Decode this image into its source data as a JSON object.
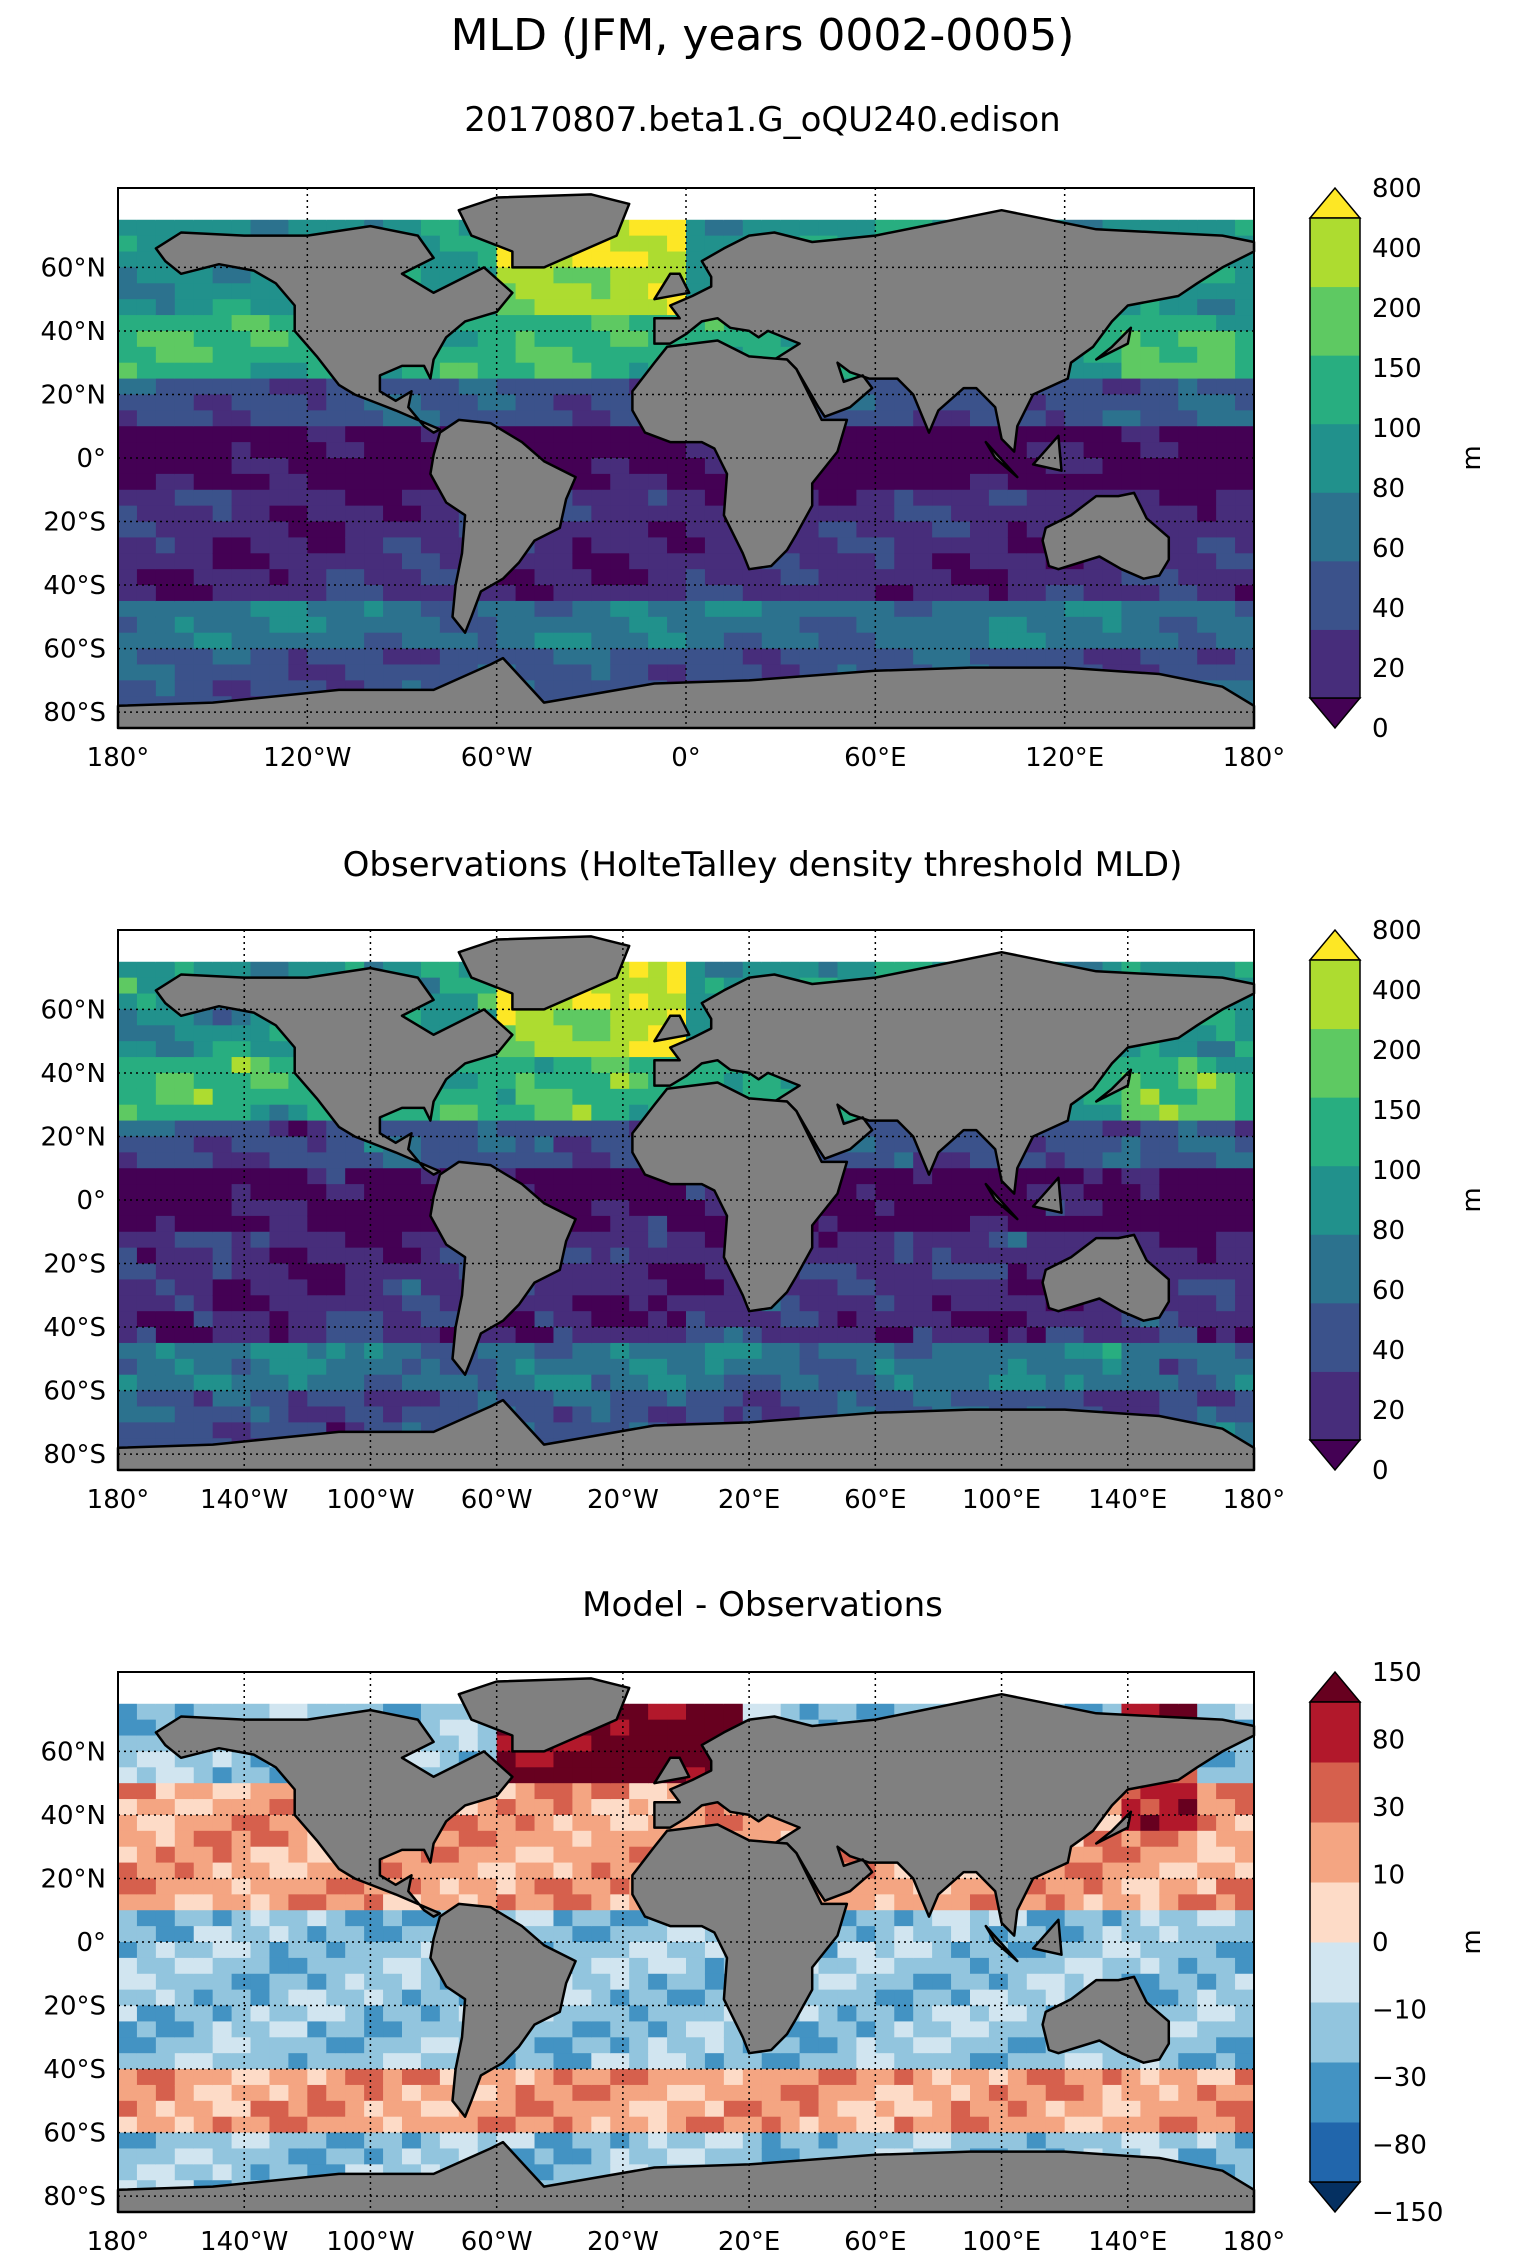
{
  "figure": {
    "title": "MLD (JFM, years 0002-0005)",
    "subtitle": "20170807.beta1.G_oQU240.edison"
  },
  "colors": {
    "land": "#808080",
    "viridis": [
      "#440154",
      "#472d7b",
      "#3b528b",
      "#2c728e",
      "#21918c",
      "#28ae80",
      "#5ec962",
      "#addc30",
      "#fde725"
    ],
    "rdbu": [
      "#053061",
      "#2166ac",
      "#4393c3",
      "#92c5de",
      "#d1e5f0",
      "#fddbc7",
      "#f4a582",
      "#d6604d",
      "#b2182b",
      "#67001f"
    ]
  },
  "chart_data": [
    {
      "type": "heatmap",
      "title": "",
      "lon_ticks": [
        "180°",
        "120°W",
        "60°W",
        "0°",
        "60°E",
        "120°E",
        "180°"
      ],
      "lat_ticks": [
        "60°N",
        "40°N",
        "20°N",
        "0°",
        "20°S",
        "40°S",
        "60°S",
        "80°S"
      ],
      "colorbar": {
        "label": "m",
        "levels": [
          "0",
          "20",
          "40",
          "60",
          "80",
          "100",
          "150",
          "200",
          "400",
          "800"
        ],
        "extend": "both"
      },
      "xlim": [
        -180,
        180
      ],
      "ylim": [
        -85,
        85
      ]
    },
    {
      "type": "heatmap",
      "title": "Observations (HolteTalley density threshold MLD)",
      "lon_ticks": [
        "180°",
        "140°W",
        "100°W",
        "60°W",
        "20°W",
        "20°E",
        "60°E",
        "100°E",
        "140°E",
        "180°"
      ],
      "lat_ticks": [
        "60°N",
        "40°N",
        "20°N",
        "0°",
        "20°S",
        "40°S",
        "60°S",
        "80°S"
      ],
      "colorbar": {
        "label": "m",
        "levels": [
          "0",
          "20",
          "40",
          "60",
          "80",
          "100",
          "150",
          "200",
          "400",
          "800"
        ],
        "extend": "both"
      },
      "xlim": [
        -180,
        180
      ],
      "ylim": [
        -85,
        85
      ]
    },
    {
      "type": "heatmap",
      "title": "Model - Observations",
      "lon_ticks": [
        "180°",
        "140°W",
        "100°W",
        "60°W",
        "20°W",
        "20°E",
        "60°E",
        "100°E",
        "140°E",
        "180°"
      ],
      "lat_ticks": [
        "60°N",
        "40°N",
        "20°N",
        "0°",
        "20°S",
        "40°S",
        "60°S",
        "80°S"
      ],
      "colorbar": {
        "label": "m",
        "levels": [
          "−150",
          "−80",
          "−30",
          "−10",
          "0",
          "10",
          "30",
          "80",
          "150"
        ],
        "extend": "both"
      },
      "xlim": [
        -180,
        180
      ],
      "ylim": [
        -85,
        85
      ]
    }
  ]
}
